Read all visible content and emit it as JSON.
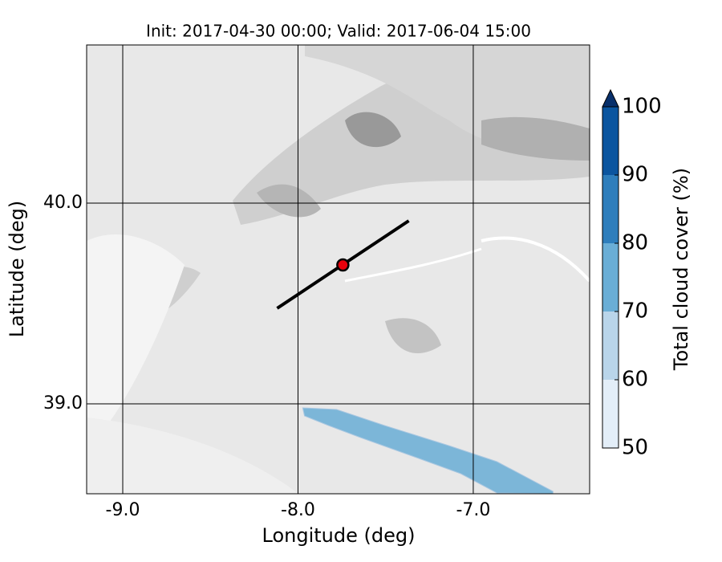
{
  "chart_data": {
    "type": "map",
    "title": "Init: 2017-04-30 00:00; Valid: 2017-06-04 15:00",
    "x_label": "Longitude (deg)",
    "y_label": "Latitude (deg)",
    "xlim": [
      -9.206,
      -6.336
    ],
    "ylim": [
      38.552,
      40.788
    ],
    "xticks": [
      {
        "value": -9,
        "label": "-9.0"
      },
      {
        "value": -8,
        "label": "-8.0"
      },
      {
        "value": -7,
        "label": "-7.0"
      }
    ],
    "yticks": [
      {
        "value": 39,
        "label": "39.0"
      },
      {
        "value": 40,
        "label": "40.0"
      }
    ],
    "grid": true,
    "cloud_areas": [
      {
        "level": 70,
        "lon": [
          -7.973,
          -7.78,
          -7.506,
          -7.14,
          -6.865,
          -6.545,
          -6.545,
          -6.865,
          -7.071,
          -7.323,
          -7.643,
          -7.826,
          -7.963
        ],
        "lat": [
          38.98,
          38.972,
          38.892,
          38.792,
          38.712,
          38.564,
          38.552,
          38.556,
          38.652,
          38.732,
          38.832,
          38.892,
          38.94
        ]
      }
    ],
    "track": {
      "lon": [
        -8.119,
        -7.368
      ],
      "lat": [
        39.476,
        39.912
      ],
      "color": "#000000"
    },
    "point": {
      "lon": -7.744,
      "lat": 39.692,
      "color": "#e8000b"
    },
    "colorbar": {
      "label": "Total cloud cover (%)",
      "ticks": [
        50,
        60,
        70,
        80,
        90,
        100
      ],
      "colors": [
        "#e3eef8",
        "#b9d5ea",
        "#6aaed6",
        "#2e7ebc",
        "#0b559f"
      ],
      "extend_color": "#08306b"
    }
  }
}
